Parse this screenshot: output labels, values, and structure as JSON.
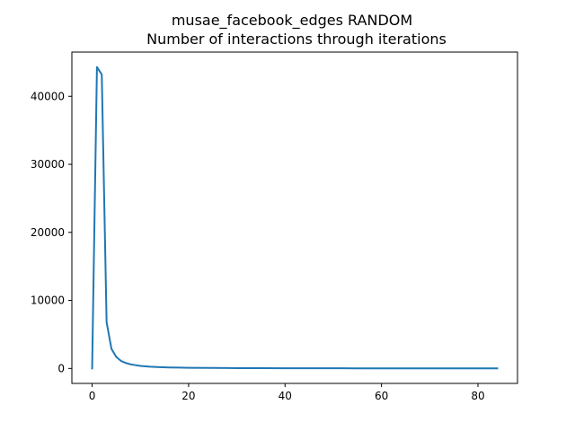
{
  "chart_data": {
    "type": "line",
    "title": "musae_facebook_edges RANDOM",
    "subtitle": "Number of interactions through iterations",
    "xlabel": "",
    "ylabel": "",
    "xlim": [
      -4.2,
      88.2
    ],
    "ylim": [
      -2200,
      46500
    ],
    "x_ticks": [
      0,
      20,
      40,
      60,
      80
    ],
    "y_ticks": [
      0,
      10000,
      20000,
      30000,
      40000
    ],
    "grid": false,
    "series_color": "#1f77b4",
    "series": [
      {
        "x": [
          0,
          1,
          2,
          3,
          4,
          5,
          6,
          7,
          8,
          9,
          10,
          12,
          14,
          16,
          18,
          20,
          25,
          30,
          35,
          40,
          45,
          50,
          55,
          60,
          65,
          70,
          75,
          80,
          84
        ],
        "values": [
          0,
          44300,
          43200,
          6800,
          2900,
          1700,
          1100,
          800,
          600,
          480,
          380,
          260,
          190,
          150,
          120,
          100,
          70,
          50,
          40,
          30,
          25,
          20,
          18,
          15,
          14,
          12,
          11,
          10,
          10
        ]
      }
    ]
  }
}
